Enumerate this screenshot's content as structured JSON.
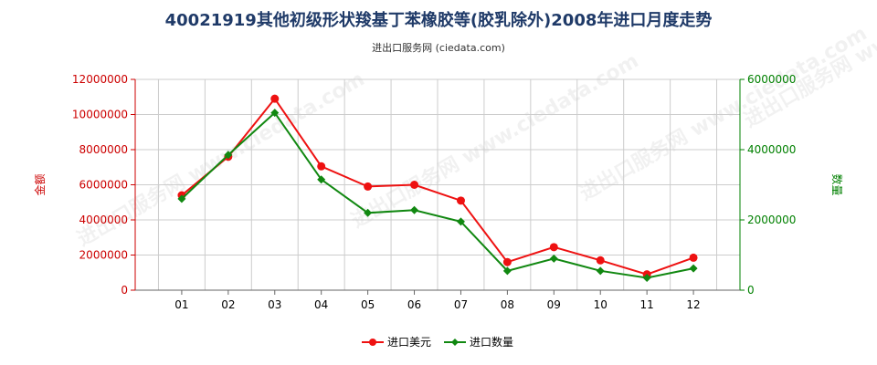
{
  "title": "40021919其他初级形状羧基丁苯橡胶等(胶乳除外)2008年进口月度走势",
  "subtitle": "进出口服务网 (ciedata.com)",
  "watermark": "进出口服务网 www.ciedata.com",
  "colors": {
    "left_axis": "#cc0000",
    "right_axis": "#008000",
    "series_usd": "#ee1111",
    "series_qty": "#118811",
    "grid": "#cccccc"
  },
  "chart_data": {
    "type": "line",
    "categories": [
      "01",
      "02",
      "03",
      "04",
      "05",
      "06",
      "07",
      "08",
      "09",
      "10",
      "11",
      "12"
    ],
    "y_left": {
      "label": "金额",
      "ylim": [
        0,
        12000000
      ],
      "ticks": [
        "0",
        "2000000",
        "4000000",
        "6000000",
        "8000000",
        "10000000",
        "12000000"
      ]
    },
    "y_right": {
      "label": "数量",
      "ylim": [
        0,
        6000000
      ],
      "ticks": [
        "0",
        "2000000",
        "4000000",
        "6000000"
      ]
    },
    "series": [
      {
        "name": "进口美元",
        "axis": "left",
        "marker": "circle",
        "values": [
          5400000,
          7600000,
          10900000,
          7050000,
          5900000,
          6000000,
          5100000,
          1600000,
          2450000,
          1700000,
          900000,
          1850000
        ]
      },
      {
        "name": "进口数量",
        "axis": "right",
        "marker": "diamond",
        "values": [
          2600000,
          3850000,
          5050000,
          3150000,
          2200000,
          2280000,
          1950000,
          550000,
          900000,
          550000,
          350000,
          620000
        ]
      }
    ],
    "grid": true,
    "legend_position": "bottom-center"
  }
}
